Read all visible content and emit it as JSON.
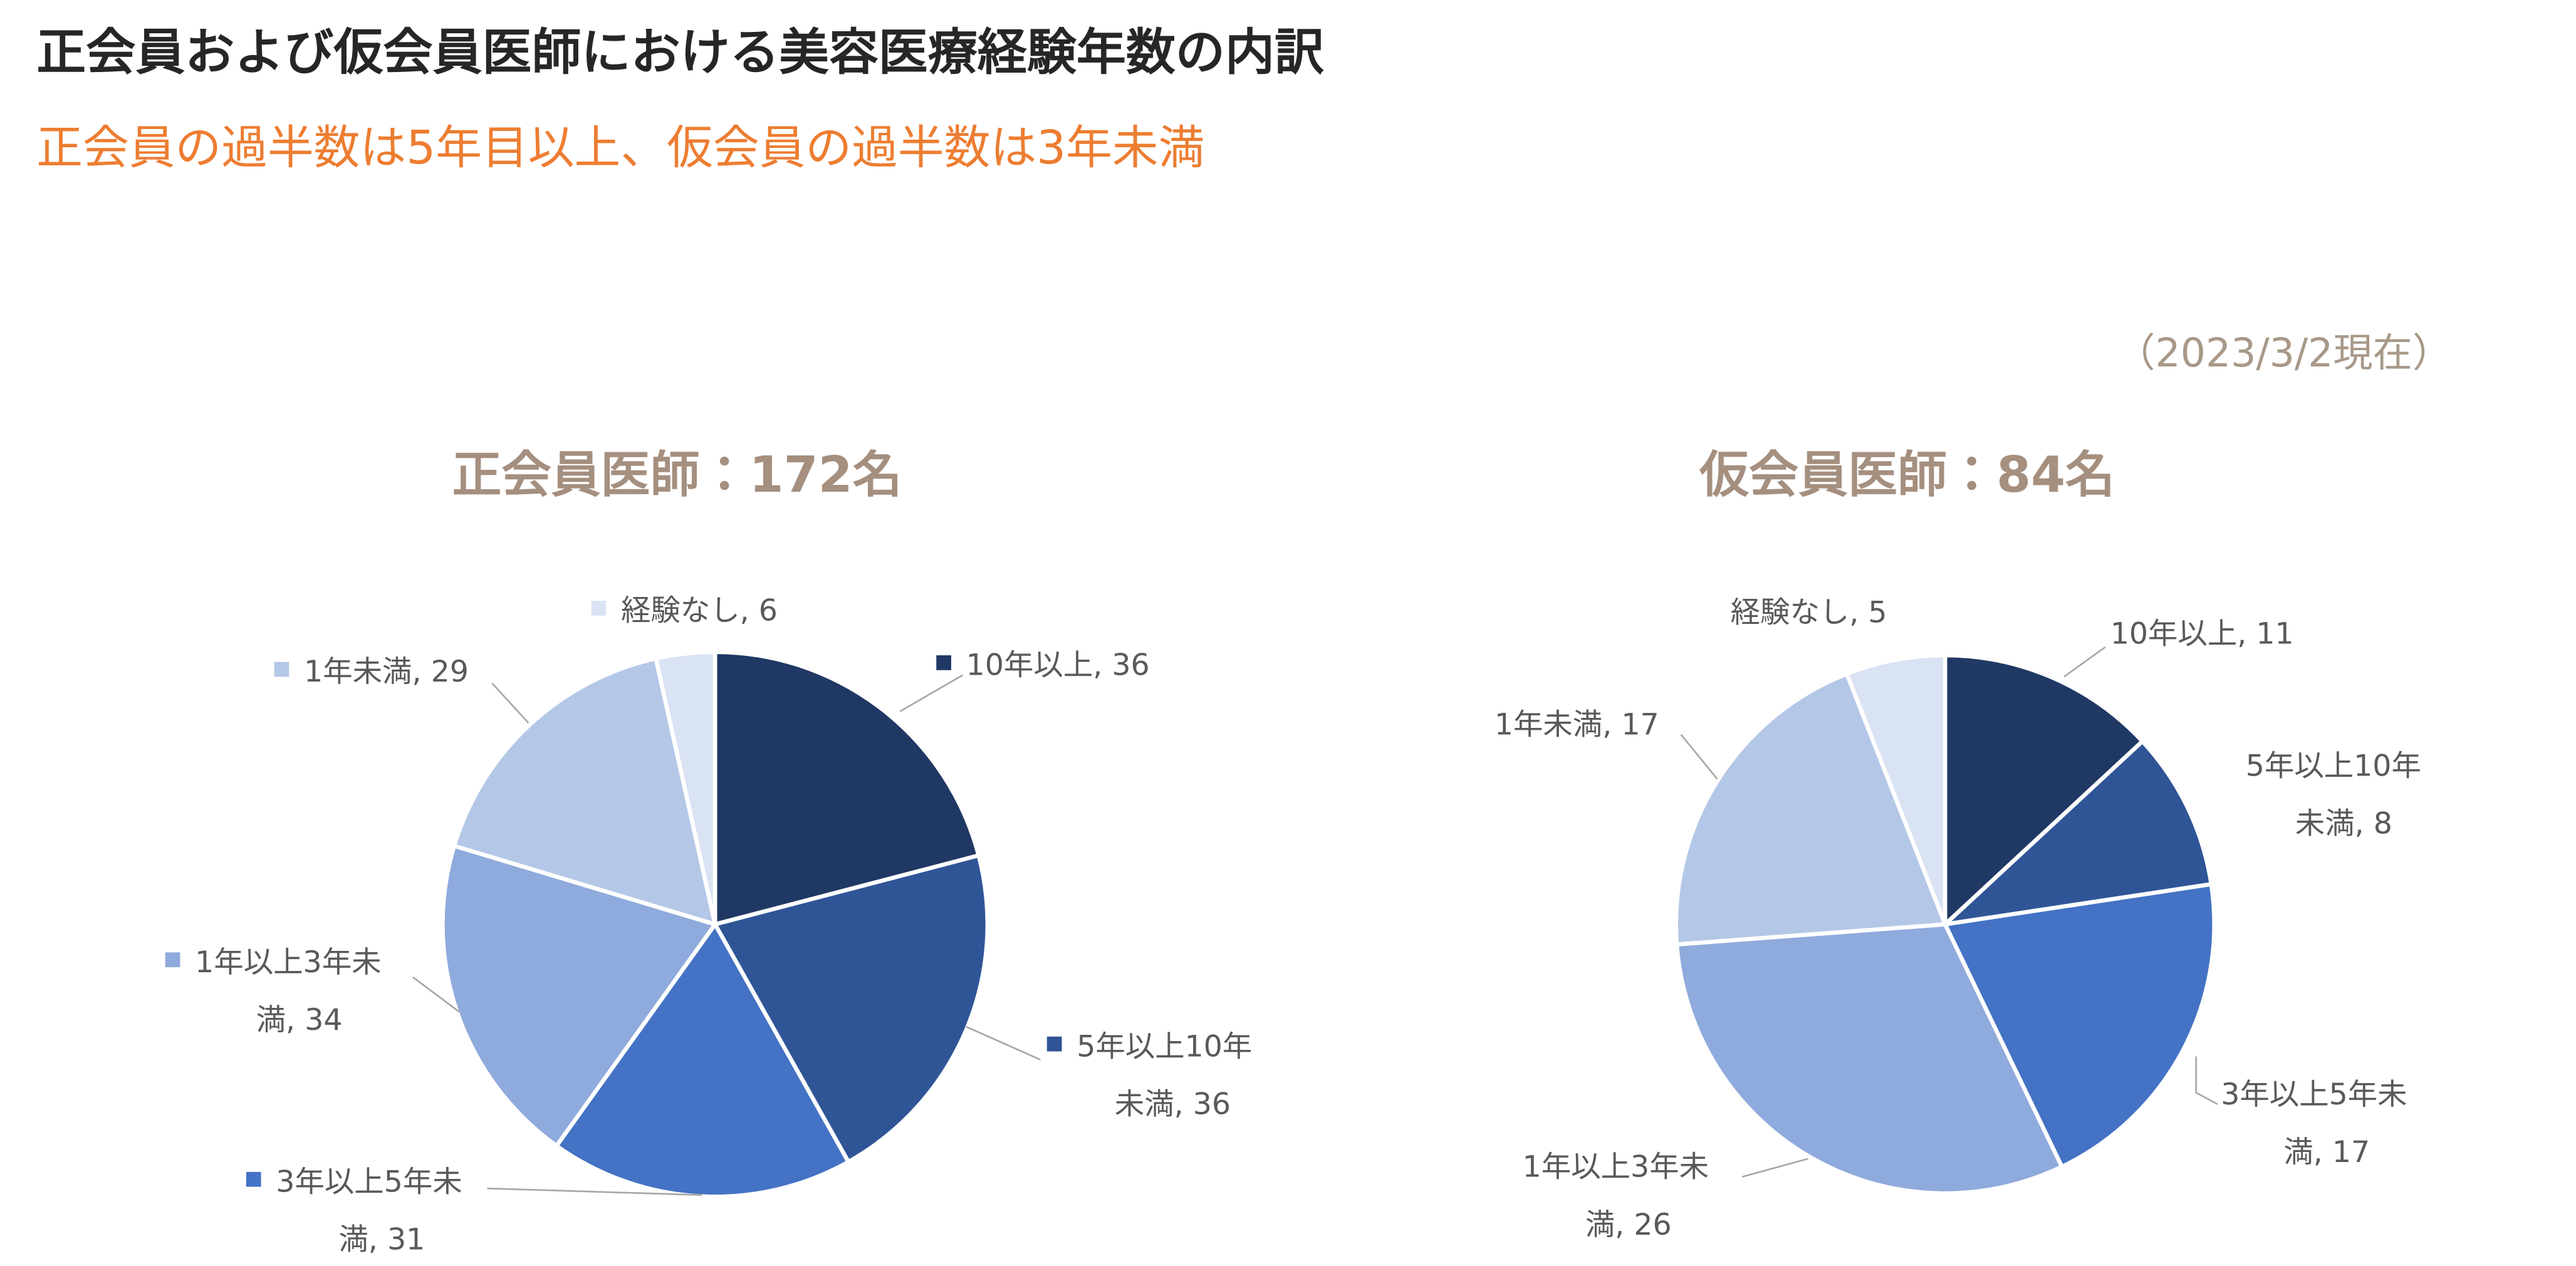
{
  "header": {
    "title": "正会員および仮会員医師における美容医療経験年数の内訳",
    "subtitle": "正会員の過半数は5年目以上、仮会員の過半数は3年未満",
    "note": "（2023/3/2現在）"
  },
  "chart_data": [
    {
      "type": "pie",
      "title": "正会員医師：172名",
      "values": [
        36,
        36,
        31,
        34,
        29,
        6
      ],
      "colors": [
        "#203864",
        "#2f5597",
        "#4472c4",
        "#8faadc",
        "#b4c7e7",
        "#dae3f3"
      ],
      "labels": [
        [
          "10年以上, 36"
        ],
        [
          "5年以上10年",
          "未満, 36"
        ],
        [
          "3年以上5年未",
          "満, 31"
        ],
        [
          "1年以上3年未",
          "満, 34"
        ],
        [
          "1年未満, 29"
        ],
        [
          "経験なし, 6"
        ]
      ],
      "legend_keys": true
    },
    {
      "type": "pie",
      "title": "仮会員医師：84名",
      "values": [
        11,
        8,
        17,
        26,
        17,
        5
      ],
      "colors": [
        "#203864",
        "#2f5597",
        "#4472c4",
        "#8faadc",
        "#b4c7e7",
        "#dae3f3"
      ],
      "labels": [
        [
          "10年以上, 11"
        ],
        [
          "5年以上10年",
          "未満, 8"
        ],
        [
          "3年以上5年未",
          "満, 17"
        ],
        [
          "1年以上3年未",
          "満, 26"
        ],
        [
          "1年未満, 17"
        ],
        [
          "経験なし, 5"
        ]
      ],
      "legend_keys": false
    }
  ]
}
